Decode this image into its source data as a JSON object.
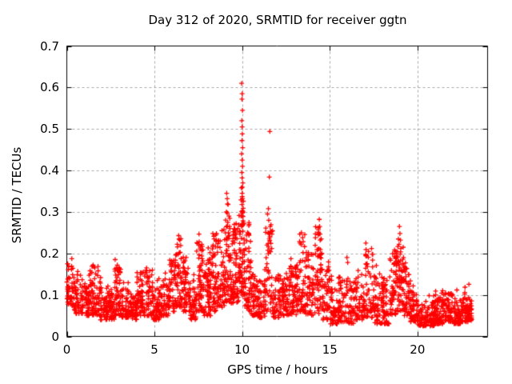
{
  "chart_data": {
    "type": "scatter",
    "title": "Day 312 of 2020, SRMTID for receiver ggtn",
    "xlabel": "GPS time / hours",
    "ylabel": "SRMTID / TECUs",
    "xlim": [
      0,
      24
    ],
    "ylim": [
      0,
      0.7
    ],
    "xticks": {
      "values": [
        0,
        5,
        10,
        15,
        20
      ],
      "labels": [
        "0",
        "5",
        "10",
        "15",
        "20"
      ]
    },
    "yticks": {
      "values": [
        0,
        0.1,
        0.2,
        0.3,
        0.4,
        0.5,
        0.6,
        0.7
      ],
      "labels": [
        "0",
        "0.1",
        "0.2",
        "0.3",
        "0.4",
        "0.5",
        "0.6",
        "0.7"
      ]
    },
    "grid": {
      "show": true,
      "color": "#a6a6a6",
      "dash": [
        3,
        3
      ]
    },
    "frame_color": "#000000",
    "marker": {
      "shape": "plus",
      "color": "#ff0000",
      "size": 7
    },
    "legend": {
      "show": false
    },
    "seed": 20312,
    "series_name": "SRMTID",
    "envelope_bins": [
      [
        0.0,
        0.4,
        40,
        0.07,
        0.175
      ],
      [
        0.4,
        0.9,
        45,
        0.055,
        0.145
      ],
      [
        0.9,
        1.3,
        40,
        0.05,
        0.13
      ],
      [
        1.3,
        1.8,
        45,
        0.05,
        0.17
      ],
      [
        1.8,
        2.3,
        45,
        0.04,
        0.12
      ],
      [
        2.3,
        2.7,
        40,
        0.04,
        0.11
      ],
      [
        2.7,
        3.1,
        45,
        0.05,
        0.17
      ],
      [
        3.1,
        3.6,
        45,
        0.045,
        0.12
      ],
      [
        3.6,
        4.0,
        40,
        0.04,
        0.105
      ],
      [
        4.0,
        4.5,
        45,
        0.05,
        0.155
      ],
      [
        4.5,
        4.9,
        40,
        0.05,
        0.16
      ],
      [
        4.9,
        5.3,
        40,
        0.04,
        0.12
      ],
      [
        5.3,
        5.8,
        45,
        0.05,
        0.14
      ],
      [
        5.8,
        6.2,
        45,
        0.06,
        0.185
      ],
      [
        6.2,
        6.6,
        45,
        0.07,
        0.235
      ],
      [
        6.6,
        7.0,
        45,
        0.06,
        0.2
      ],
      [
        7.0,
        7.4,
        40,
        0.04,
        0.135
      ],
      [
        7.4,
        7.8,
        45,
        0.06,
        0.225
      ],
      [
        7.8,
        8.2,
        45,
        0.05,
        0.19
      ],
      [
        8.2,
        8.6,
        45,
        0.06,
        0.25
      ],
      [
        8.6,
        9.0,
        45,
        0.07,
        0.26
      ],
      [
        9.0,
        9.4,
        45,
        0.08,
        0.3
      ],
      [
        9.4,
        9.8,
        45,
        0.08,
        0.28
      ],
      [
        9.8,
        10.15,
        50,
        0.1,
        0.34
      ],
      [
        10.15,
        10.5,
        40,
        0.06,
        0.25
      ],
      [
        10.5,
        10.9,
        40,
        0.05,
        0.15
      ],
      [
        10.9,
        11.3,
        40,
        0.045,
        0.14
      ],
      [
        11.3,
        11.75,
        45,
        0.06,
        0.27
      ],
      [
        11.75,
        12.2,
        40,
        0.045,
        0.15
      ],
      [
        12.2,
        12.7,
        45,
        0.05,
        0.155
      ],
      [
        12.7,
        13.1,
        45,
        0.05,
        0.18
      ],
      [
        13.1,
        13.6,
        45,
        0.06,
        0.23
      ],
      [
        13.6,
        14.1,
        45,
        0.05,
        0.2
      ],
      [
        14.1,
        14.55,
        45,
        0.055,
        0.26
      ],
      [
        14.55,
        15.0,
        45,
        0.04,
        0.17
      ],
      [
        15.0,
        15.5,
        45,
        0.03,
        0.115
      ],
      [
        15.5,
        16.0,
        45,
        0.035,
        0.15
      ],
      [
        16.0,
        16.5,
        45,
        0.03,
        0.14
      ],
      [
        16.5,
        17.0,
        45,
        0.04,
        0.155
      ],
      [
        17.0,
        17.5,
        45,
        0.045,
        0.2
      ],
      [
        17.5,
        18.0,
        45,
        0.03,
        0.155
      ],
      [
        18.0,
        18.4,
        40,
        0.03,
        0.125
      ],
      [
        18.4,
        18.8,
        45,
        0.05,
        0.2
      ],
      [
        18.8,
        19.2,
        45,
        0.06,
        0.235
      ],
      [
        19.2,
        19.6,
        40,
        0.05,
        0.17
      ],
      [
        19.6,
        20.0,
        40,
        0.035,
        0.115
      ],
      [
        20.0,
        20.5,
        45,
        0.025,
        0.08
      ],
      [
        20.5,
        21.0,
        50,
        0.025,
        0.085
      ],
      [
        21.0,
        21.5,
        50,
        0.03,
        0.095
      ],
      [
        21.5,
        22.0,
        50,
        0.035,
        0.105
      ],
      [
        22.0,
        22.5,
        50,
        0.03,
        0.09
      ],
      [
        22.5,
        23.1,
        55,
        0.035,
        0.095
      ]
    ],
    "highlight_points": [
      [
        0.05,
        0.175
      ],
      [
        1.5,
        0.172
      ],
      [
        2.88,
        0.172
      ],
      [
        4.55,
        0.165
      ],
      [
        6.3,
        0.222
      ],
      [
        6.38,
        0.243
      ],
      [
        6.45,
        0.232
      ],
      [
        7.55,
        0.228
      ],
      [
        7.62,
        0.215
      ],
      [
        8.33,
        0.248
      ],
      [
        8.4,
        0.235
      ],
      [
        8.85,
        0.255
      ],
      [
        9.1,
        0.3
      ],
      [
        9.12,
        0.345
      ],
      [
        9.15,
        0.332
      ],
      [
        9.18,
        0.275
      ],
      [
        9.2,
        0.318
      ],
      [
        9.22,
        0.25
      ],
      [
        9.25,
        0.29
      ],
      [
        9.3,
        0.26
      ],
      [
        9.55,
        0.27
      ],
      [
        9.65,
        0.25
      ],
      [
        9.75,
        0.26
      ],
      [
        9.94,
        0.29
      ],
      [
        9.96,
        0.358
      ],
      [
        9.97,
        0.44
      ],
      [
        9.97,
        0.61
      ],
      [
        9.98,
        0.395
      ],
      [
        9.98,
        0.52
      ],
      [
        9.99,
        0.318
      ],
      [
        9.99,
        0.472
      ],
      [
        9.99,
        0.572
      ],
      [
        10.0,
        0.345
      ],
      [
        10.0,
        0.382
      ],
      [
        10.0,
        0.425
      ],
      [
        10.0,
        0.505
      ],
      [
        10.0,
        0.585
      ],
      [
        10.01,
        0.488
      ],
      [
        10.02,
        0.332
      ],
      [
        10.02,
        0.41
      ],
      [
        10.02,
        0.545
      ],
      [
        10.03,
        0.455
      ],
      [
        10.04,
        0.37
      ],
      [
        10.05,
        0.3
      ],
      [
        10.07,
        0.275
      ],
      [
        11.42,
        0.22
      ],
      [
        11.45,
        0.295
      ],
      [
        11.48,
        0.25
      ],
      [
        11.5,
        0.308
      ],
      [
        11.52,
        0.28
      ],
      [
        11.55,
        0.235
      ],
      [
        11.55,
        0.384
      ],
      [
        11.58,
        0.494
      ],
      [
        11.6,
        0.265
      ],
      [
        13.3,
        0.225
      ],
      [
        13.38,
        0.25
      ],
      [
        13.45,
        0.238
      ],
      [
        14.38,
        0.248
      ],
      [
        14.4,
        0.282
      ],
      [
        14.42,
        0.265
      ],
      [
        14.45,
        0.232
      ],
      [
        15.98,
        0.19
      ],
      [
        16.02,
        0.178
      ],
      [
        17.38,
        0.212
      ],
      [
        17.42,
        0.198
      ],
      [
        18.95,
        0.222
      ],
      [
        18.97,
        0.265
      ],
      [
        19.0,
        0.248
      ],
      [
        19.03,
        0.232
      ],
      [
        19.05,
        0.212
      ],
      [
        21.6,
        0.105
      ]
    ]
  }
}
